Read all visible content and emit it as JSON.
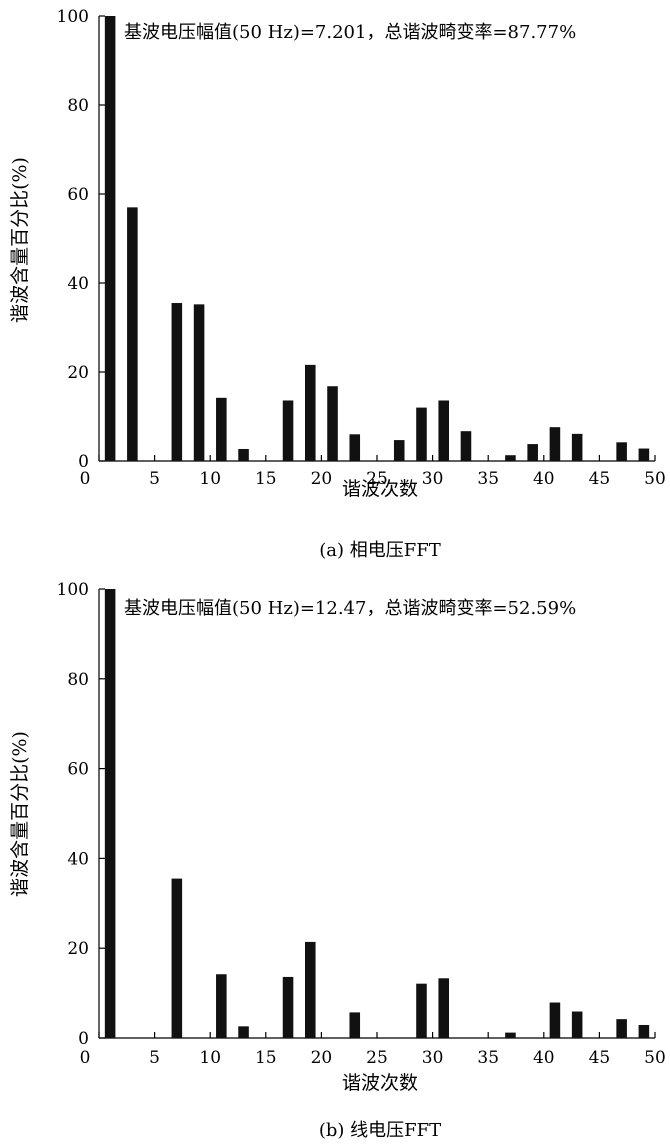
{
  "chart_data": [
    {
      "type": "bar",
      "annotation": "基波电压幅值(50 Hz)=7.201，总谐波畸变率=87.77%",
      "xlabel": "谐波次数",
      "ylabel": "谐波含量百分比(%)",
      "caption": "(a) 相电压FFT",
      "xlim": [
        0,
        50
      ],
      "ylim": [
        0,
        100
      ],
      "xticks": [
        "0",
        "5",
        "10",
        "15",
        "20",
        "25",
        "30",
        "35",
        "40",
        "45",
        "50"
      ],
      "yticks": [
        "0",
        "20",
        "40",
        "60",
        "80",
        "100"
      ],
      "x": [
        1,
        3,
        5,
        7,
        9,
        11,
        13,
        15,
        17,
        19,
        21,
        23,
        25,
        27,
        29,
        31,
        33,
        35,
        37,
        39,
        41,
        43,
        45,
        47,
        49
      ],
      "values": [
        100,
        57,
        0,
        35.5,
        35.2,
        14.2,
        2.7,
        0,
        13.6,
        21.6,
        16.8,
        6.0,
        0,
        4.7,
        12.0,
        13.6,
        6.7,
        0,
        1.3,
        3.8,
        7.6,
        6.1,
        0,
        4.2,
        2.8
      ]
    },
    {
      "type": "bar",
      "annotation": "基波电压幅值(50 Hz)=12.47，总谐波畸变率=52.59%",
      "xlabel": "谐波次数",
      "ylabel": "谐波含量百分比(%)",
      "caption": "(b) 线电压FFT",
      "xlim": [
        0,
        50
      ],
      "ylim": [
        0,
        100
      ],
      "xticks": [
        "0",
        "5",
        "10",
        "15",
        "20",
        "25",
        "30",
        "35",
        "40",
        "45",
        "50"
      ],
      "yticks": [
        "0",
        "20",
        "40",
        "60",
        "80",
        "100"
      ],
      "x": [
        1,
        3,
        5,
        7,
        9,
        11,
        13,
        15,
        17,
        19,
        21,
        23,
        25,
        27,
        29,
        31,
        33,
        35,
        37,
        39,
        41,
        43,
        45,
        47,
        49
      ],
      "values": [
        100,
        0,
        0,
        35.5,
        0,
        14.2,
        2.6,
        0,
        13.6,
        21.4,
        0,
        5.7,
        0,
        0,
        12.1,
        13.3,
        0,
        0,
        1.2,
        0,
        7.9,
        5.9,
        0,
        4.2,
        2.9
      ]
    }
  ]
}
